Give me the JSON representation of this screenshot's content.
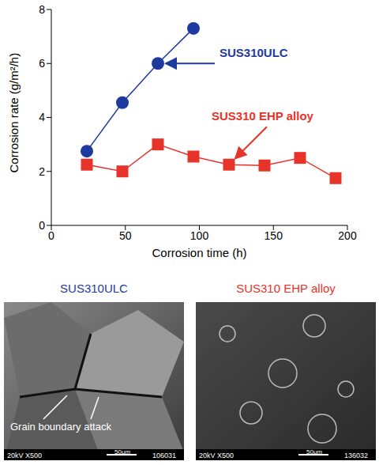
{
  "chart_data": {
    "type": "line",
    "x_label": "Corrosion time (h)",
    "y_label": "Corrosion rate (g/m²/h)",
    "xlim": [
      0,
      200
    ],
    "xticks": [
      0,
      50,
      100,
      150,
      200
    ],
    "ylim": [
      0,
      8
    ],
    "yticks": [
      0,
      2,
      4,
      6,
      8
    ],
    "grid": false,
    "series": [
      {
        "name": "SUS310ULC",
        "color": "#1f3a9e",
        "marker": "circle",
        "line_style": "solid",
        "x": [
          24,
          48,
          72,
          96
        ],
        "values": [
          2.75,
          4.55,
          6.0,
          7.3
        ]
      },
      {
        "name": "SUS310 EHP alloy",
        "color": "#e8332a",
        "marker": "square",
        "line_style": "solid",
        "x": [
          24,
          48,
          72,
          96,
          120,
          144,
          168,
          192
        ],
        "values": [
          2.25,
          2.0,
          3.0,
          2.55,
          2.25,
          2.22,
          2.5,
          1.75
        ]
      }
    ]
  },
  "micrographs": [
    {
      "title": "SUS310ULC",
      "color": "#1f3a9e",
      "annotation": "Grain boundary attack",
      "info": "20kV X500",
      "scale": "50μm",
      "id": "106031"
    },
    {
      "title": "SUS310 EHP alloy",
      "color": "#e8332a",
      "info": "20kV X500",
      "scale": "50μm",
      "id": "136032"
    }
  ]
}
